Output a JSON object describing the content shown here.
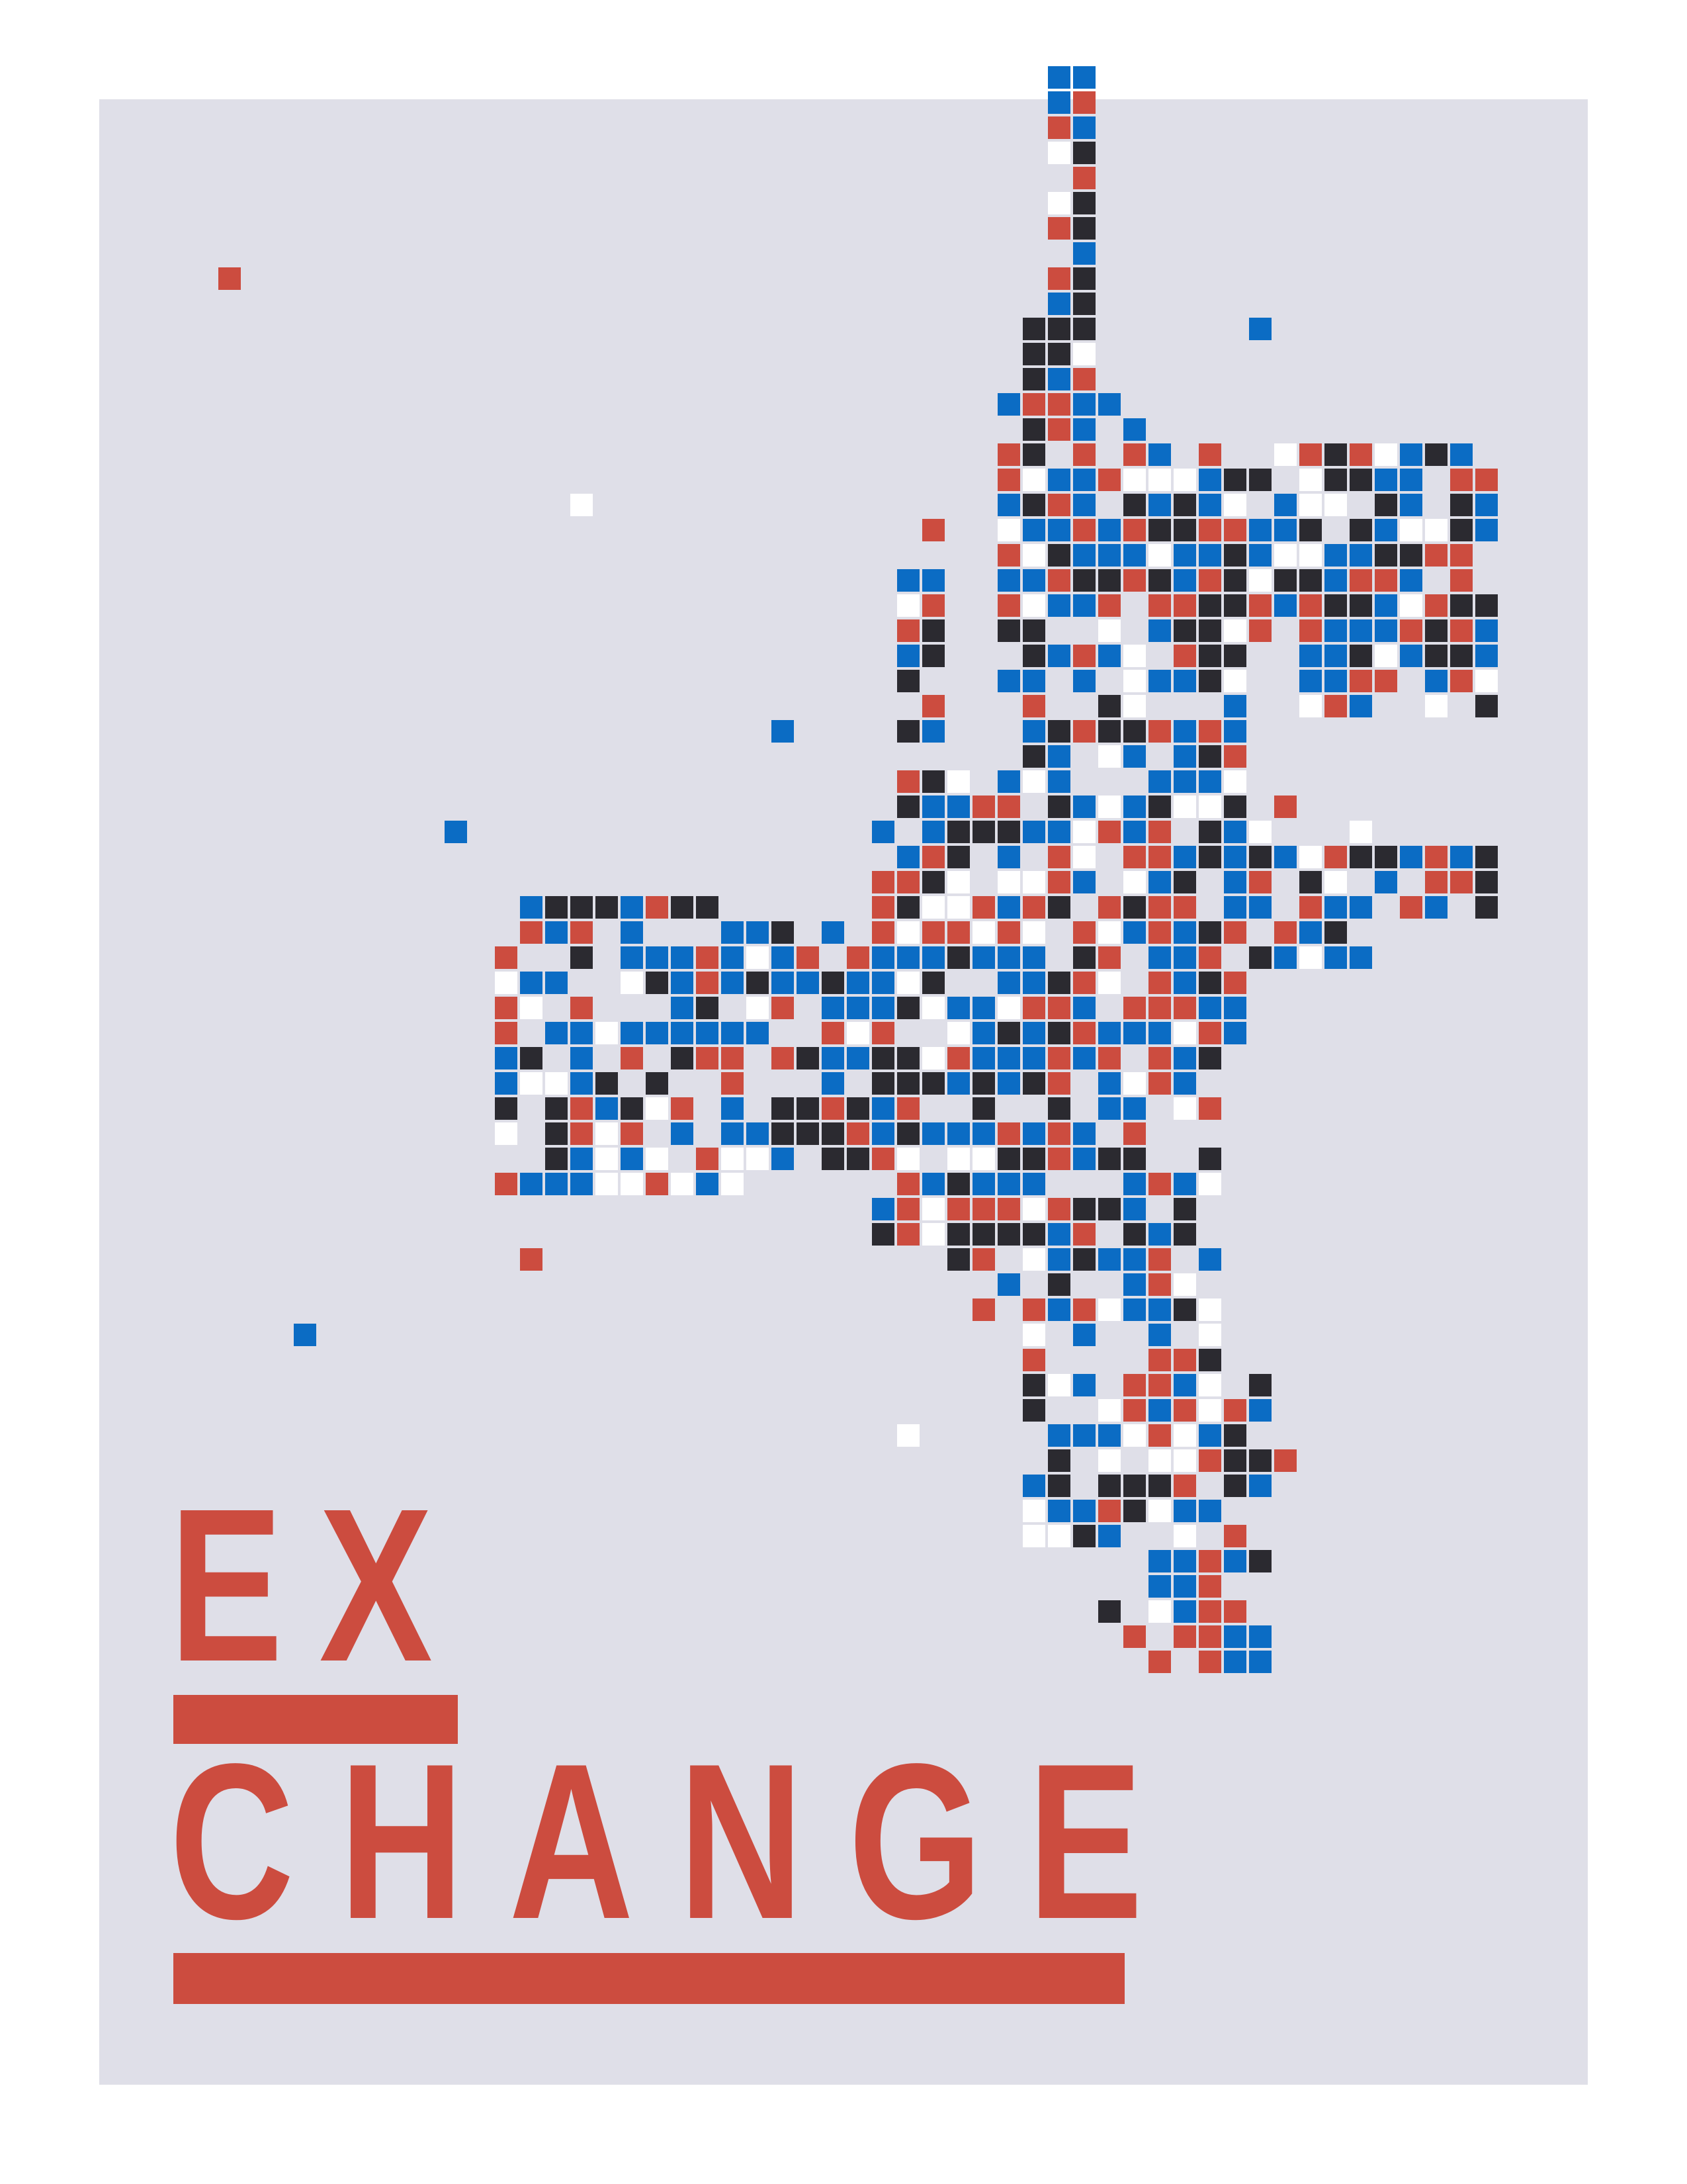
{
  "poster": {
    "title_line_1": "EX",
    "title_line_2": "CHANGE",
    "colors": {
      "page": "#ffffff",
      "panel": "#dfdfe8",
      "accent_red": "#cc4c3f",
      "blue": "#0b6cc4",
      "charcoal": "#2b2a30",
      "white_tile": "#ffffff"
    },
    "mosaic": {
      "palette": [
        "#cc4c3f",
        "#0b6cc4",
        "#2b2a30",
        "#ffffff"
      ],
      "tile_colors_by_frequency": [
        "blue",
        "charcoal",
        "red",
        "white"
      ]
    }
  }
}
